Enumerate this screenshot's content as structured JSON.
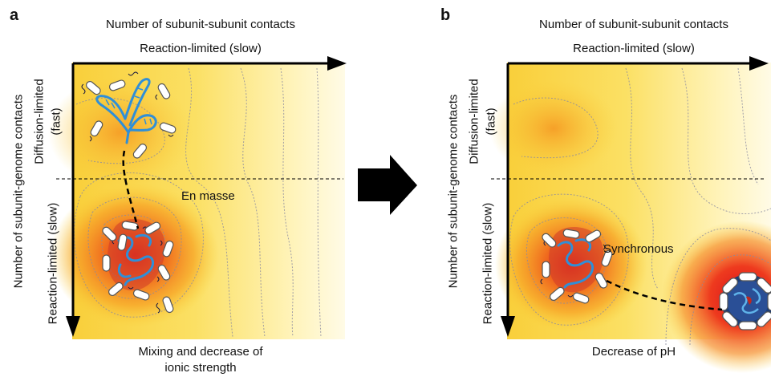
{
  "panels": [
    {
      "letter": "a",
      "top_title": "Number of subunit-subunit contacts",
      "top_axis_label": "Reaction-limited (slow)",
      "left_title": "Number of subunit-genome contacts",
      "left_upper_label_1": "Diffusion-limited",
      "left_upper_label_2": "(fast)",
      "left_lower_label": "Reaction-limited (slow)",
      "annotation": "En masse",
      "bottom_label_1": "Mixing and decrease of",
      "bottom_label_2": "ionic strength"
    },
    {
      "letter": "b",
      "top_title": "Number of subunit-subunit contacts",
      "top_axis_label": "Reaction-limited (slow)",
      "left_title": "Number of subunit-genome contacts",
      "left_upper_label_1": "Diffusion-limited",
      "left_upper_label_2": "(fast)",
      "left_lower_label": "Reaction-limited (slow)",
      "annotation": "Synchronous",
      "bottom_label_1": "Decrease of pH"
    }
  ],
  "colors": {
    "landscape_low": "#fff6c8",
    "landscape_mid": "#f7c22a",
    "landscape_high": "#e8241a",
    "genome": "#2f8fd8",
    "subunit": "#ffffff",
    "arrow": "#000000"
  }
}
